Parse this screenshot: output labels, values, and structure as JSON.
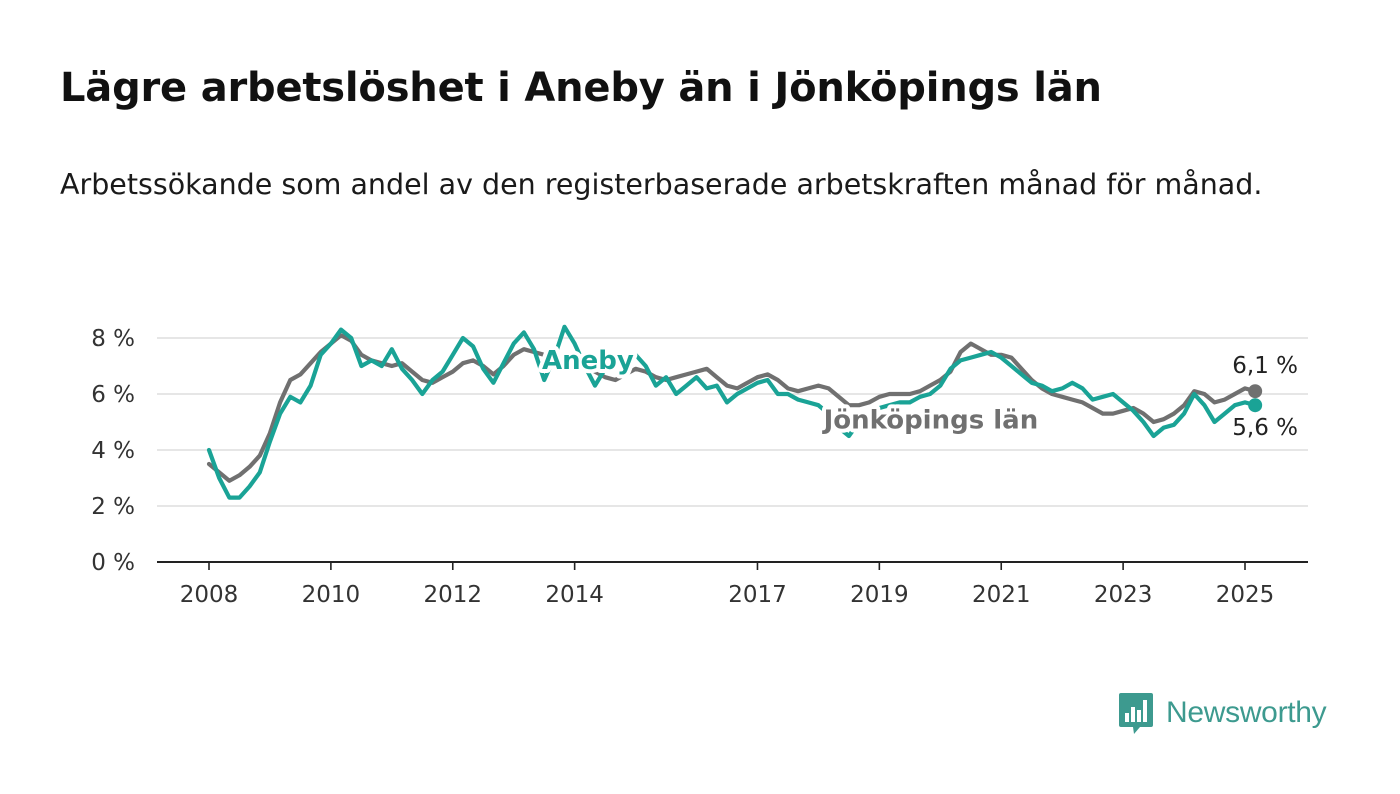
{
  "header": {
    "title": "Lägre arbetslöshet i Aneby än i Jönköpings län",
    "subtitle": "Arbetssökande som andel av den registerbaserade arbetskraften månad för månad."
  },
  "brand": {
    "label": "Newsworthy",
    "icon": "bar-chart-logo-icon",
    "color": "#3d9a8f"
  },
  "chart_data": {
    "type": "line",
    "xlabel": "",
    "ylabel": "",
    "ylim": [
      0,
      8
    ],
    "y_ticks": [
      0,
      2,
      4,
      6,
      8
    ],
    "y_tick_labels": [
      "0 %",
      "2 %",
      "4 %",
      "6 %",
      "8 %"
    ],
    "x_ticks": [
      "2008",
      "2010",
      "2012",
      "2014",
      "2017",
      "2019",
      "2021",
      "2023",
      "2025"
    ],
    "x_range": [
      "2008-01",
      "2025-03"
    ],
    "grid": true,
    "legend": "inline labels",
    "series": [
      {
        "name": "Jönköpings län",
        "color": "#707070",
        "points": [
          [
            "2008-01",
            3.5
          ],
          [
            "2008-03",
            3.2
          ],
          [
            "2008-05",
            2.9
          ],
          [
            "2008-07",
            3.1
          ],
          [
            "2008-09",
            3.4
          ],
          [
            "2008-11",
            3.8
          ],
          [
            "2009-01",
            4.6
          ],
          [
            "2009-03",
            5.7
          ],
          [
            "2009-05",
            6.5
          ],
          [
            "2009-07",
            6.7
          ],
          [
            "2009-09",
            7.1
          ],
          [
            "2009-11",
            7.5
          ],
          [
            "2010-01",
            7.8
          ],
          [
            "2010-03",
            8.1
          ],
          [
            "2010-05",
            7.9
          ],
          [
            "2010-07",
            7.4
          ],
          [
            "2010-09",
            7.2
          ],
          [
            "2010-11",
            7.1
          ],
          [
            "2011-01",
            7.0
          ],
          [
            "2011-03",
            7.1
          ],
          [
            "2011-05",
            6.8
          ],
          [
            "2011-07",
            6.5
          ],
          [
            "2011-09",
            6.4
          ],
          [
            "2011-11",
            6.6
          ],
          [
            "2012-01",
            6.8
          ],
          [
            "2012-03",
            7.1
          ],
          [
            "2012-05",
            7.2
          ],
          [
            "2012-07",
            7.0
          ],
          [
            "2012-09",
            6.7
          ],
          [
            "2012-11",
            7.0
          ],
          [
            "2013-01",
            7.4
          ],
          [
            "2013-03",
            7.6
          ],
          [
            "2013-05",
            7.5
          ],
          [
            "2013-07",
            7.4
          ],
          [
            "2013-09",
            7.3
          ],
          [
            "2013-11",
            7.2
          ],
          [
            "2014-01",
            7.1
          ],
          [
            "2014-03",
            7.0
          ],
          [
            "2014-05",
            6.8
          ],
          [
            "2014-07",
            6.6
          ],
          [
            "2014-09",
            6.5
          ],
          [
            "2014-11",
            6.7
          ],
          [
            "2015-01",
            6.9
          ],
          [
            "2015-03",
            6.8
          ],
          [
            "2015-05",
            6.6
          ],
          [
            "2015-07",
            6.5
          ],
          [
            "2015-09",
            6.6
          ],
          [
            "2015-11",
            6.7
          ],
          [
            "2016-01",
            6.8
          ],
          [
            "2016-03",
            6.9
          ],
          [
            "2016-05",
            6.6
          ],
          [
            "2016-07",
            6.3
          ],
          [
            "2016-09",
            6.2
          ],
          [
            "2016-11",
            6.4
          ],
          [
            "2017-01",
            6.6
          ],
          [
            "2017-03",
            6.7
          ],
          [
            "2017-05",
            6.5
          ],
          [
            "2017-07",
            6.2
          ],
          [
            "2017-09",
            6.1
          ],
          [
            "2017-11",
            6.2
          ],
          [
            "2018-01",
            6.3
          ],
          [
            "2018-03",
            6.2
          ],
          [
            "2018-05",
            5.9
          ],
          [
            "2018-07",
            5.6
          ],
          [
            "2018-09",
            5.6
          ],
          [
            "2018-11",
            5.7
          ],
          [
            "2019-01",
            5.9
          ],
          [
            "2019-03",
            6.0
          ],
          [
            "2019-05",
            6.0
          ],
          [
            "2019-07",
            6.0
          ],
          [
            "2019-09",
            6.1
          ],
          [
            "2019-11",
            6.3
          ],
          [
            "2020-01",
            6.5
          ],
          [
            "2020-03",
            6.8
          ],
          [
            "2020-05",
            7.5
          ],
          [
            "2020-07",
            7.8
          ],
          [
            "2020-09",
            7.6
          ],
          [
            "2020-11",
            7.4
          ],
          [
            "2021-01",
            7.4
          ],
          [
            "2021-03",
            7.3
          ],
          [
            "2021-05",
            6.9
          ],
          [
            "2021-07",
            6.5
          ],
          [
            "2021-09",
            6.2
          ],
          [
            "2021-11",
            6.0
          ],
          [
            "2022-01",
            5.9
          ],
          [
            "2022-03",
            5.8
          ],
          [
            "2022-05",
            5.7
          ],
          [
            "2022-07",
            5.5
          ],
          [
            "2022-09",
            5.3
          ],
          [
            "2022-11",
            5.3
          ],
          [
            "2023-01",
            5.4
          ],
          [
            "2023-03",
            5.5
          ],
          [
            "2023-05",
            5.3
          ],
          [
            "2023-07",
            5.0
          ],
          [
            "2023-09",
            5.1
          ],
          [
            "2023-11",
            5.3
          ],
          [
            "2024-01",
            5.6
          ],
          [
            "2024-03",
            6.1
          ],
          [
            "2024-05",
            6.0
          ],
          [
            "2024-07",
            5.7
          ],
          [
            "2024-09",
            5.8
          ],
          [
            "2024-11",
            6.0
          ],
          [
            "2025-01",
            6.2
          ],
          [
            "2025-03",
            6.1
          ]
        ]
      },
      {
        "name": "Aneby",
        "color": "#1aa396",
        "points": [
          [
            "2008-01",
            4.0
          ],
          [
            "2008-03",
            3.0
          ],
          [
            "2008-05",
            2.3
          ],
          [
            "2008-07",
            2.3
          ],
          [
            "2008-09",
            2.7
          ],
          [
            "2008-11",
            3.2
          ],
          [
            "2009-01",
            4.3
          ],
          [
            "2009-03",
            5.3
          ],
          [
            "2009-05",
            5.9
          ],
          [
            "2009-07",
            5.7
          ],
          [
            "2009-09",
            6.3
          ],
          [
            "2009-11",
            7.4
          ],
          [
            "2010-01",
            7.8
          ],
          [
            "2010-03",
            8.3
          ],
          [
            "2010-05",
            8.0
          ],
          [
            "2010-07",
            7.0
          ],
          [
            "2010-09",
            7.2
          ],
          [
            "2010-11",
            7.0
          ],
          [
            "2011-01",
            7.6
          ],
          [
            "2011-03",
            6.9
          ],
          [
            "2011-05",
            6.5
          ],
          [
            "2011-07",
            6.0
          ],
          [
            "2011-09",
            6.5
          ],
          [
            "2011-11",
            6.8
          ],
          [
            "2012-01",
            7.4
          ],
          [
            "2012-03",
            8.0
          ],
          [
            "2012-05",
            7.7
          ],
          [
            "2012-07",
            6.9
          ],
          [
            "2012-09",
            6.4
          ],
          [
            "2012-11",
            7.1
          ],
          [
            "2013-01",
            7.8
          ],
          [
            "2013-03",
            8.2
          ],
          [
            "2013-05",
            7.6
          ],
          [
            "2013-07",
            6.5
          ],
          [
            "2013-09",
            7.3
          ],
          [
            "2013-11",
            8.4
          ],
          [
            "2014-01",
            7.8
          ],
          [
            "2014-03",
            7.0
          ],
          [
            "2014-05",
            6.3
          ],
          [
            "2014-07",
            6.9
          ],
          [
            "2014-09",
            7.4
          ],
          [
            "2014-11",
            7.1
          ],
          [
            "2015-01",
            7.4
          ],
          [
            "2015-03",
            7.0
          ],
          [
            "2015-05",
            6.3
          ],
          [
            "2015-07",
            6.6
          ],
          [
            "2015-09",
            6.0
          ],
          [
            "2015-11",
            6.3
          ],
          [
            "2016-01",
            6.6
          ],
          [
            "2016-03",
            6.2
          ],
          [
            "2016-05",
            6.3
          ],
          [
            "2016-07",
            5.7
          ],
          [
            "2016-09",
            6.0
          ],
          [
            "2016-11",
            6.2
          ],
          [
            "2017-01",
            6.4
          ],
          [
            "2017-03",
            6.5
          ],
          [
            "2017-05",
            6.0
          ],
          [
            "2017-07",
            6.0
          ],
          [
            "2017-09",
            5.8
          ],
          [
            "2017-11",
            5.7
          ],
          [
            "2018-01",
            5.6
          ],
          [
            "2018-03",
            5.3
          ],
          [
            "2018-05",
            4.8
          ],
          [
            "2018-07",
            4.5
          ],
          [
            "2018-09",
            5.0
          ],
          [
            "2018-11",
            5.2
          ],
          [
            "2019-01",
            5.5
          ],
          [
            "2019-03",
            5.6
          ],
          [
            "2019-05",
            5.7
          ],
          [
            "2019-07",
            5.7
          ],
          [
            "2019-09",
            5.9
          ],
          [
            "2019-11",
            6.0
          ],
          [
            "2020-01",
            6.3
          ],
          [
            "2020-03",
            6.9
          ],
          [
            "2020-05",
            7.2
          ],
          [
            "2020-07",
            7.3
          ],
          [
            "2020-09",
            7.4
          ],
          [
            "2020-11",
            7.5
          ],
          [
            "2021-01",
            7.3
          ],
          [
            "2021-03",
            7.0
          ],
          [
            "2021-05",
            6.7
          ],
          [
            "2021-07",
            6.4
          ],
          [
            "2021-09",
            6.3
          ],
          [
            "2021-11",
            6.1
          ],
          [
            "2022-01",
            6.2
          ],
          [
            "2022-03",
            6.4
          ],
          [
            "2022-05",
            6.2
          ],
          [
            "2022-07",
            5.8
          ],
          [
            "2022-09",
            5.9
          ],
          [
            "2022-11",
            6.0
          ],
          [
            "2023-01",
            5.7
          ],
          [
            "2023-03",
            5.4
          ],
          [
            "2023-05",
            5.0
          ],
          [
            "2023-07",
            4.5
          ],
          [
            "2023-09",
            4.8
          ],
          [
            "2023-11",
            4.9
          ],
          [
            "2024-01",
            5.3
          ],
          [
            "2024-03",
            6.0
          ],
          [
            "2024-05",
            5.6
          ],
          [
            "2024-07",
            5.0
          ],
          [
            "2024-09",
            5.3
          ],
          [
            "2024-11",
            5.6
          ],
          [
            "2025-01",
            5.7
          ],
          [
            "2025-03",
            5.6
          ]
        ]
      }
    ],
    "annotations": [
      {
        "text": "Aneby",
        "series": "Aneby",
        "at": "2013-05"
      },
      {
        "text": "Jönköpings län",
        "series": "Jönköpings län",
        "at": "2018-03"
      }
    ],
    "end_labels": [
      {
        "series": "Jönköpings län",
        "text": "6,1 %"
      },
      {
        "series": "Aneby",
        "text": "5,6 %"
      }
    ]
  }
}
